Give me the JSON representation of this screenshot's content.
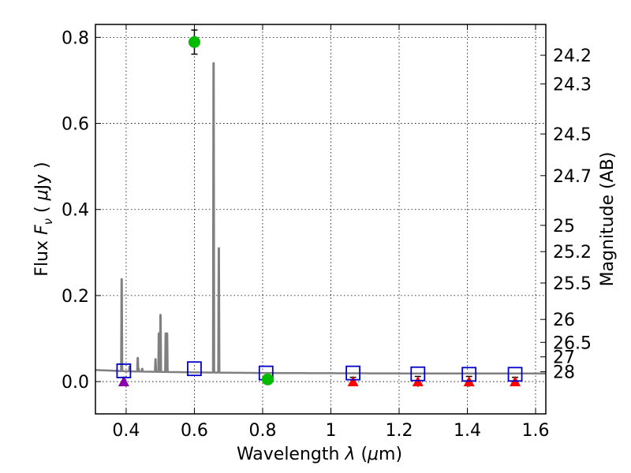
{
  "chart_data": {
    "type": "line",
    "title": "",
    "xlabel": "Wavelength  λ (μm)",
    "ylabel": "Flux  Fν  ( μJy )",
    "y2label": "Magnitude (AB)",
    "xlim": [
      0.31,
      1.63
    ],
    "ylim": [
      -0.075,
      0.83
    ],
    "grid": true,
    "xticks": [
      {
        "value": 0.4,
        "label": "0.4"
      },
      {
        "value": 0.6,
        "label": "0.6"
      },
      {
        "value": 0.8,
        "label": "0.8"
      },
      {
        "value": 1.0,
        "label": "1"
      },
      {
        "value": 1.2,
        "label": "1.2"
      },
      {
        "value": 1.4,
        "label": "1.4"
      },
      {
        "value": 1.6,
        "label": "1.6"
      }
    ],
    "yticks": [
      {
        "value": 0.0,
        "label": "0.0"
      },
      {
        "value": 0.2,
        "label": "0.2"
      },
      {
        "value": 0.4,
        "label": "0.4"
      },
      {
        "value": 0.6,
        "label": "0.6"
      },
      {
        "value": 0.8,
        "label": "0.8"
      }
    ],
    "mag_ticks": [
      {
        "value": 0.7584,
        "label": "24.2"
      },
      {
        "value": 0.6918,
        "label": "24.3"
      },
      {
        "value": 0.5754,
        "label": "24.5"
      },
      {
        "value": 0.4786,
        "label": "24.7"
      },
      {
        "value": 0.3631,
        "label": "25"
      },
      {
        "value": 0.302,
        "label": "25.2"
      },
      {
        "value": 0.2291,
        "label": "25.5"
      },
      {
        "value": 0.1445,
        "label": "26"
      },
      {
        "value": 0.0912,
        "label": "26.5"
      },
      {
        "value": 0.0575,
        "label": "27"
      },
      {
        "value": 0.0229,
        "label": "28"
      }
    ],
    "spectrum": {
      "color": "#808080",
      "continuum": [
        [
          0.31,
          0.027
        ],
        [
          0.4,
          0.024
        ],
        [
          0.5,
          0.0225
        ],
        [
          0.65,
          0.021
        ],
        [
          0.8,
          0.02
        ],
        [
          1.0,
          0.0195
        ],
        [
          1.2,
          0.019
        ],
        [
          1.4,
          0.019
        ],
        [
          1.63,
          0.019
        ]
      ],
      "lines": [
        {
          "x": 0.3869,
          "y": 0.238
        },
        {
          "x": 0.4101,
          "y": 0.035
        },
        {
          "x": 0.434,
          "y": 0.055
        },
        {
          "x": 0.4363,
          "y": 0.03
        },
        {
          "x": 0.447,
          "y": 0.03
        },
        {
          "x": 0.4861,
          "y": 0.052
        },
        {
          "x": 0.4959,
          "y": 0.112
        },
        {
          "x": 0.5007,
          "y": 0.155
        },
        {
          "x": 0.516,
          "y": 0.112
        },
        {
          "x": 0.52,
          "y": 0.112
        },
        {
          "x": 0.6563,
          "y": 0.74
        },
        {
          "x": 0.6716,
          "y": 0.31
        }
      ]
    },
    "model_photometry": {
      "color": "#0000cc",
      "marker": "open-square",
      "x": [
        0.393,
        0.6,
        0.81,
        1.065,
        1.255,
        1.405,
        1.54
      ],
      "y": [
        0.025,
        0.03,
        0.02,
        0.02,
        0.018,
        0.017,
        0.017
      ]
    },
    "detections": {
      "color": "#00bb00",
      "marker": "circle",
      "points": [
        {
          "x": 0.6,
          "y": 0.789,
          "err": 0.028
        },
        {
          "x": 0.815,
          "y": 0.005,
          "err": 0.008
        }
      ]
    },
    "upper_limits": [
      {
        "x": 0.393,
        "y": 0.0,
        "err": 0.01,
        "color": "#8800aa"
      },
      {
        "x": 1.065,
        "y": 0.0,
        "err": 0.01,
        "color": "#ff0000"
      },
      {
        "x": 1.255,
        "y": 0.0,
        "err": 0.012,
        "color": "#ff0000"
      },
      {
        "x": 1.405,
        "y": 0.0,
        "err": 0.012,
        "color": "#ff0000"
      },
      {
        "x": 1.54,
        "y": 0.0,
        "err": 0.01,
        "color": "#ff0000"
      }
    ]
  }
}
